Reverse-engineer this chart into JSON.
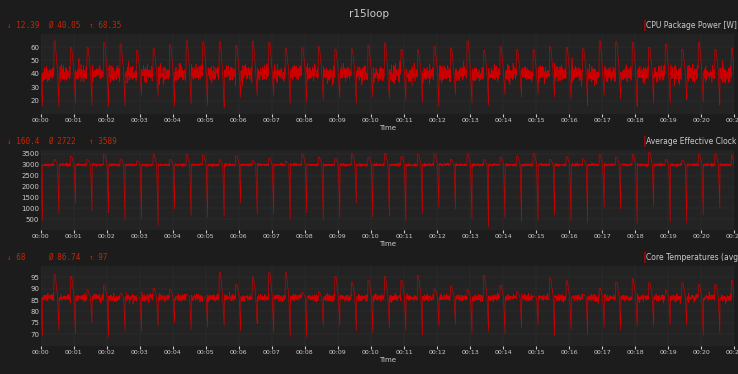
{
  "title": "r15loop",
  "background_color": "#1c1c1c",
  "panel_bg": "#1c1c1c",
  "plot_bg": "#232323",
  "line_color": "#cc0000",
  "text_color": "#cccccc",
  "label_color": "#cc2200",
  "grid_color": "#333333",
  "panel1": {
    "label": "CPU Package Power [W]",
    "stat_min": "↓ 12.39",
    "stat_avg": "Ø 40.05",
    "stat_max": "↑ 68.35",
    "ymin": 10,
    "ymax": 70,
    "yticks": [
      20,
      30,
      40,
      50,
      60
    ],
    "base_value": 40,
    "spike_value": 65,
    "low_value": 15,
    "noise_scale": 3.0
  },
  "panel2": {
    "label": "Average Effective Clock [MHz]",
    "stat_min": "↓ 160.4",
    "stat_avg": "Ø 2722",
    "stat_max": "↑ 3589",
    "ymin": 0,
    "ymax": 3700,
    "yticks": [
      500,
      1000,
      1500,
      2000,
      2500,
      3000,
      3500
    ],
    "base_value": 3000,
    "spike_value": 3589,
    "low_value": 160,
    "noise_scale": 1.5
  },
  "panel3": {
    "label": "Core Temperatures (avg) [°C]",
    "stat_min": "↓ 68",
    "stat_avg": "Ø 86.74",
    "stat_max": "↑ 97",
    "ymin": 65,
    "ymax": 100,
    "yticks": [
      70,
      75,
      80,
      85,
      90,
      95
    ],
    "base_value": 86,
    "spike_value": 97,
    "low_value": 68,
    "noise_scale": 1.5
  },
  "duration_minutes": 21,
  "tick_interval_minutes": 1,
  "num_cycles": 42,
  "seed": 42
}
